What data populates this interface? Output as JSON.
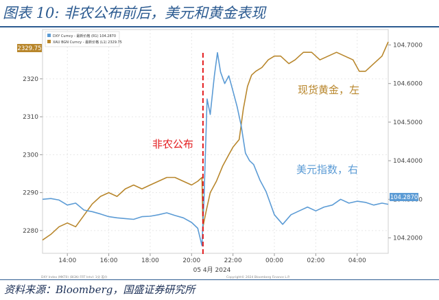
{
  "figure": {
    "title": "图表 10: 非农公布前后，美元和黄金表现",
    "source": "资料来源：Bloomberg，国盛证券研究所"
  },
  "colors": {
    "gold": "#b8862b",
    "dxy": "#5b9bd5",
    "marker": "#e31a1c",
    "axis_text": "#444444",
    "title_blue": "#2b5a90"
  },
  "chart_data": {
    "type": "line",
    "x": [
      "14:00",
      "16:00",
      "18:00",
      "20:00",
      "22:00",
      "00:00",
      "02:00",
      "04:00"
    ],
    "x_date_label": "05 4月 2024",
    "xlim": [
      12.8,
      29.5
    ],
    "legend_placement": "top-left",
    "legend": [
      "DXY Curncy - 最新价格 (R1)  104.2870",
      "XAU BGN Curncy - 最新价格 (L1)  2329.75"
    ],
    "left_axis": {
      "ticks": [
        2280,
        2290,
        2300,
        2310,
        2320
      ],
      "ylim": [
        2274,
        2333
      ],
      "last_value": "2329.75"
    },
    "right_axis": {
      "ticks": [
        "104.2000",
        "104.3000",
        "104.4000",
        "104.5000",
        "104.6000",
        "104.7000"
      ],
      "ylim": [
        104.16,
        104.74
      ],
      "last_value": "104.2870"
    },
    "series": [
      {
        "name": "XAU BGN Curncy - 最新价格",
        "short_name": "现货黄金，左",
        "axis": "left",
        "points": [
          [
            12.8,
            2277.5
          ],
          [
            13.2,
            2279
          ],
          [
            13.6,
            2281
          ],
          [
            14.0,
            2282
          ],
          [
            14.4,
            2281
          ],
          [
            14.8,
            2284
          ],
          [
            15.2,
            2287
          ],
          [
            15.6,
            2289
          ],
          [
            16.0,
            2290
          ],
          [
            16.4,
            2289
          ],
          [
            16.8,
            2291
          ],
          [
            17.2,
            2292
          ],
          [
            17.6,
            2291
          ],
          [
            18.0,
            2292
          ],
          [
            18.4,
            2293
          ],
          [
            18.8,
            2294
          ],
          [
            19.2,
            2294
          ],
          [
            19.6,
            2293
          ],
          [
            20.0,
            2292
          ],
          [
            20.3,
            2293
          ],
          [
            20.5,
            2294
          ],
          [
            20.55,
            2281
          ],
          [
            20.7,
            2285
          ],
          [
            20.9,
            2290
          ],
          [
            21.2,
            2293
          ],
          [
            21.5,
            2297
          ],
          [
            21.8,
            2300
          ],
          [
            22.0,
            2302
          ],
          [
            22.3,
            2304
          ],
          [
            22.5,
            2312
          ],
          [
            22.7,
            2318
          ],
          [
            22.9,
            2321
          ],
          [
            23.1,
            2322
          ],
          [
            23.4,
            2323
          ],
          [
            23.7,
            2325
          ],
          [
            24.0,
            2326
          ],
          [
            24.3,
            2326
          ],
          [
            24.7,
            2324
          ],
          [
            25.0,
            2325
          ],
          [
            25.4,
            2327
          ],
          [
            25.8,
            2327
          ],
          [
            26.2,
            2325
          ],
          [
            26.6,
            2326
          ],
          [
            27.0,
            2327
          ],
          [
            27.4,
            2326
          ],
          [
            27.8,
            2325
          ],
          [
            28.1,
            2322
          ],
          [
            28.4,
            2322
          ],
          [
            28.8,
            2324
          ],
          [
            29.2,
            2326
          ],
          [
            29.5,
            2329.75
          ]
        ]
      },
      {
        "name": "DXY Curncy - 最新价格",
        "short_name": "美元指数，右",
        "axis": "right",
        "points": [
          [
            12.8,
            104.3
          ],
          [
            13.2,
            104.302
          ],
          [
            13.6,
            104.298
          ],
          [
            14.0,
            104.285
          ],
          [
            14.4,
            104.29
          ],
          [
            14.8,
            104.272
          ],
          [
            15.2,
            104.268
          ],
          [
            15.6,
            104.262
          ],
          [
            16.0,
            104.255
          ],
          [
            16.4,
            104.252
          ],
          [
            16.8,
            104.25
          ],
          [
            17.2,
            104.248
          ],
          [
            17.6,
            104.255
          ],
          [
            18.0,
            104.256
          ],
          [
            18.4,
            104.26
          ],
          [
            18.8,
            104.265
          ],
          [
            19.2,
            104.258
          ],
          [
            19.6,
            104.252
          ],
          [
            20.0,
            104.24
          ],
          [
            20.3,
            104.225
          ],
          [
            20.5,
            104.18
          ],
          [
            20.6,
            104.3
          ],
          [
            20.75,
            104.56
          ],
          [
            20.9,
            104.52
          ],
          [
            21.1,
            104.62
          ],
          [
            21.25,
            104.68
          ],
          [
            21.4,
            104.63
          ],
          [
            21.6,
            104.6
          ],
          [
            21.8,
            104.62
          ],
          [
            22.0,
            104.58
          ],
          [
            22.2,
            104.54
          ],
          [
            22.4,
            104.49
          ],
          [
            22.6,
            104.42
          ],
          [
            22.8,
            104.4
          ],
          [
            23.0,
            104.39
          ],
          [
            23.3,
            104.35
          ],
          [
            23.6,
            104.32
          ],
          [
            24.0,
            104.26
          ],
          [
            24.4,
            104.235
          ],
          [
            24.8,
            104.26
          ],
          [
            25.2,
            104.27
          ],
          [
            25.6,
            104.28
          ],
          [
            26.0,
            104.27
          ],
          [
            26.4,
            104.28
          ],
          [
            26.8,
            104.285
          ],
          [
            27.2,
            104.3
          ],
          [
            27.6,
            104.29
          ],
          [
            28.0,
            104.295
          ],
          [
            28.4,
            104.292
          ],
          [
            28.8,
            104.285
          ],
          [
            29.2,
            104.29
          ],
          [
            29.5,
            104.287
          ]
        ]
      }
    ],
    "annotations": {
      "release_label": "非农公布",
      "release_x": 20.55,
      "gold_label": "现货黄金，左",
      "dxy_label": "美元指数，右"
    },
    "footer_left": "DXY Index (MKT0) (BGN) FRT  Intvl: 1分  差价",
    "footer_right": "Copyright© 2024 Bloomberg Finance L.P."
  }
}
